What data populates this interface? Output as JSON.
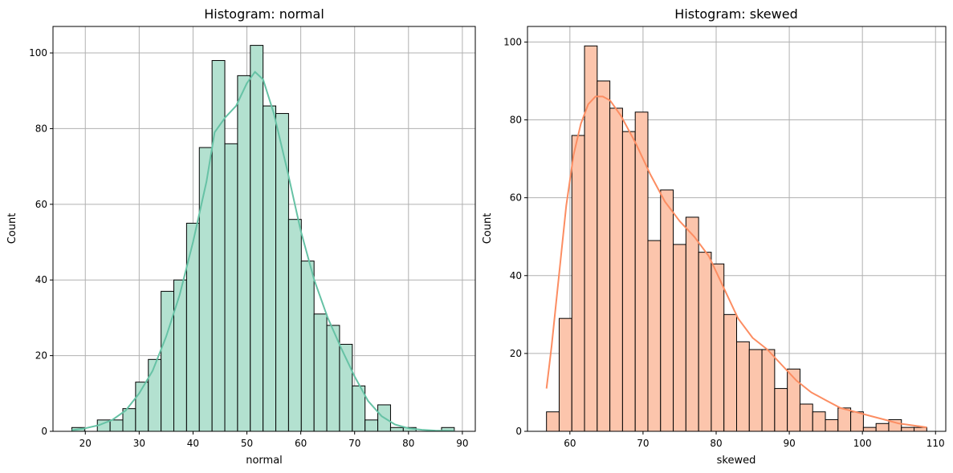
{
  "chart_data": [
    {
      "type": "bar",
      "title": "Histogram: normal",
      "xlabel": "normal",
      "ylabel": "Count",
      "xlim": [
        14,
        92.4
      ],
      "ylim": [
        0,
        107
      ],
      "xticks": [
        20,
        30,
        40,
        50,
        60,
        70,
        80,
        90
      ],
      "yticks": [
        0,
        20,
        40,
        60,
        80,
        100
      ],
      "grid": true,
      "bar_color": "#b3e1d0",
      "line_color": "#66c2a5",
      "bins": {
        "start": 17.5,
        "end": 88.5,
        "counts": [
          1,
          0,
          3,
          3,
          6,
          13,
          19,
          37,
          40,
          55,
          75,
          98,
          76,
          94,
          102,
          86,
          84,
          56,
          45,
          31,
          28,
          23,
          12,
          3,
          7,
          1,
          1,
          0,
          0,
          1
        ]
      },
      "kde": {
        "x": [
          17.5,
          20,
          22.5,
          25,
          27.5,
          30,
          32.5,
          35,
          37.5,
          40,
          42.5,
          44,
          46,
          48,
          50,
          51.5,
          53,
          55,
          57.5,
          60,
          62.5,
          65,
          67.5,
          70,
          72.5,
          75,
          77.5,
          80,
          82.5,
          85,
          88.5
        ],
        "y": [
          0.3,
          0.8,
          1.6,
          3,
          5.5,
          10,
          16,
          25,
          36,
          50,
          66,
          79,
          83,
          86,
          92,
          95,
          93,
          84,
          69,
          53,
          40,
          30,
          22,
          14.5,
          8,
          4,
          1.8,
          0.8,
          0.4,
          0.2,
          0.1
        ]
      }
    },
    {
      "type": "bar",
      "title": "Histogram: skewed",
      "xlabel": "skewed",
      "ylabel": "Count",
      "xlim": [
        54.2,
        111.4
      ],
      "ylim": [
        0,
        104
      ],
      "xticks": [
        60,
        70,
        80,
        90,
        100,
        110
      ],
      "yticks": [
        0,
        20,
        40,
        60,
        80,
        100
      ],
      "grid": true,
      "bar_color": "#fcc5ac",
      "line_color": "#fc8d62",
      "bins": {
        "start": 56.8,
        "end": 108.8,
        "counts": [
          5,
          29,
          76,
          99,
          90,
          83,
          77,
          82,
          49,
          62,
          48,
          55,
          46,
          43,
          30,
          23,
          21,
          21,
          11,
          16,
          7,
          5,
          3,
          6,
          5,
          1,
          2,
          3,
          1,
          1
        ]
      },
      "kde": {
        "x": [
          56.8,
          57.5,
          58.5,
          59.5,
          60.5,
          61.5,
          62.5,
          63.5,
          64.5,
          65.5,
          67,
          69,
          71,
          73,
          75,
          77,
          79,
          81,
          83,
          85,
          87,
          89,
          91,
          93,
          95,
          97,
          99,
          101,
          103,
          105,
          107,
          108.8
        ],
        "y": [
          11,
          22,
          40,
          58,
          71,
          79,
          84,
          86,
          86,
          85,
          81,
          74,
          66,
          59,
          54,
          50,
          45,
          37,
          29,
          24,
          21,
          17,
          13,
          10,
          8,
          6,
          5,
          4,
          3,
          2,
          1.5,
          1
        ]
      }
    }
  ]
}
